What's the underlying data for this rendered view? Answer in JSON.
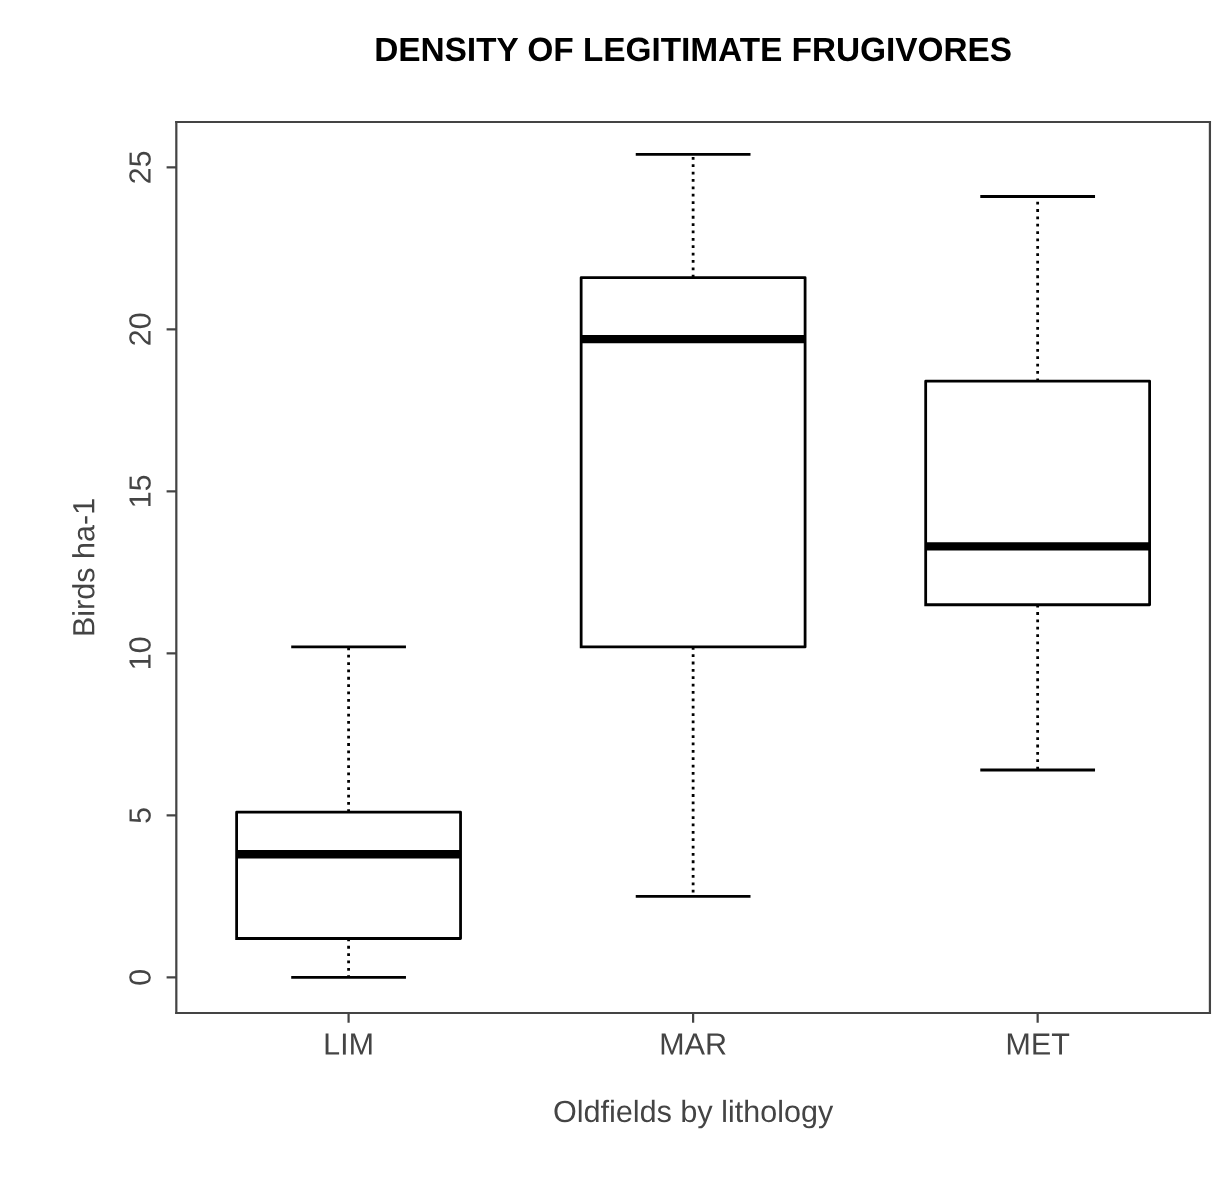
{
  "chart_data": {
    "type": "box",
    "title": "DENSITY OF LEGITIMATE FRUGIVORES",
    "xlabel": "Oldfields by lithology",
    "ylabel": "Birds ha-1",
    "categories": [
      "LIM",
      "MAR",
      "MET"
    ],
    "boxes": [
      {
        "low": 0,
        "q1": 1.2,
        "median": 3.8,
        "q3": 5.1,
        "high": 10.2
      },
      {
        "low": 2.5,
        "q1": 10.2,
        "median": 19.7,
        "q3": 21.6,
        "high": 25.4
      },
      {
        "low": 6.4,
        "q1": 11.5,
        "median": 13.3,
        "q3": 18.4,
        "high": 24.1
      }
    ],
    "ylim": [
      -1.1,
      26.4
    ],
    "yticks": [
      0,
      5,
      10,
      15,
      20,
      25
    ],
    "grid": false,
    "legend": false,
    "line_style": "dotted"
  }
}
